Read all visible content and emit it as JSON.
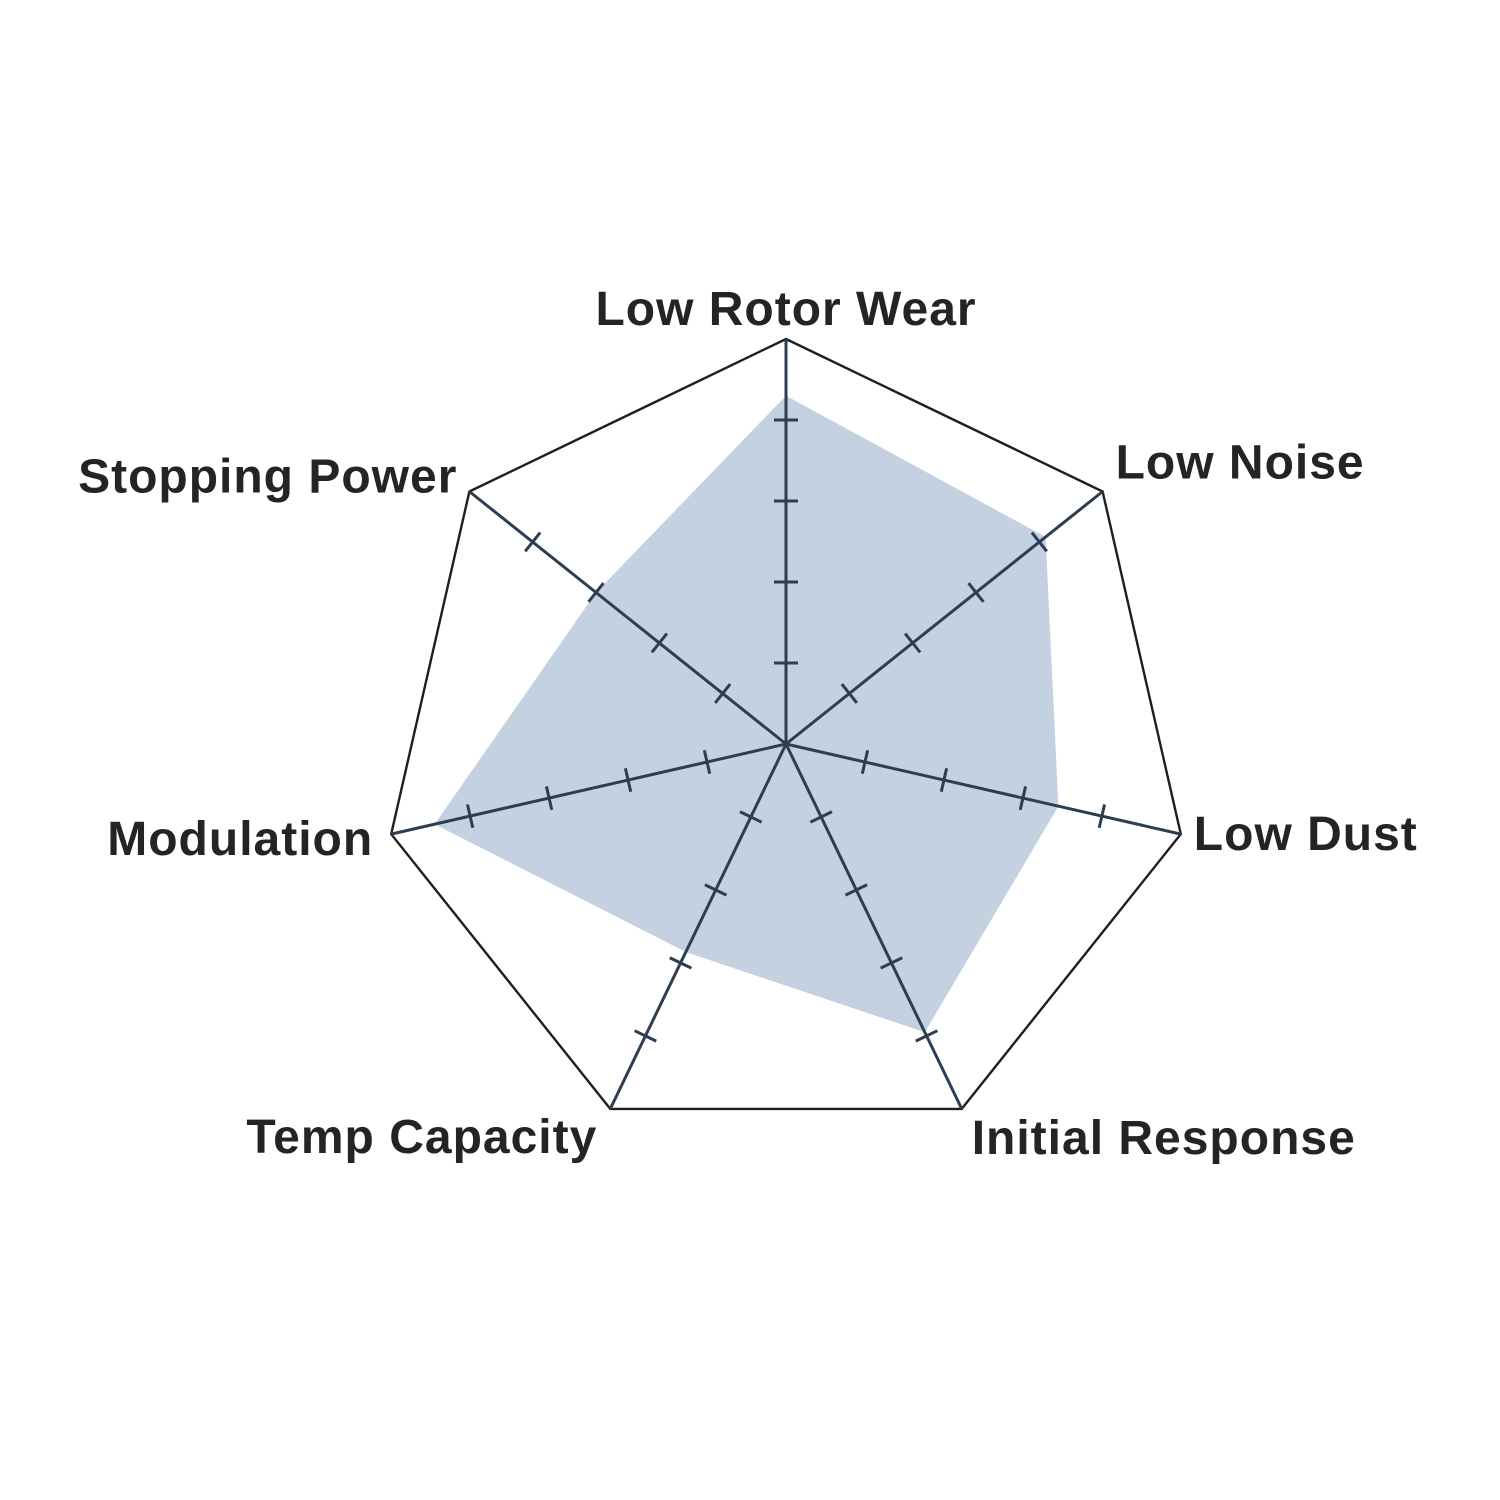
{
  "chart_data": {
    "type": "radar",
    "title": "",
    "axes": [
      "Low Rotor Wear",
      "Low Noise",
      "Low Dust",
      "Initial Response",
      "Temp Capacity",
      "Modulation",
      "Stopping Power"
    ],
    "values": [
      4.3,
      4.1,
      3.45,
      3.95,
      2.85,
      4.45,
      3.0
    ],
    "scale": {
      "min": 0,
      "max": 5,
      "ticks": [
        1,
        2,
        3,
        4
      ]
    },
    "legend_position": "none",
    "grid": "seven spokes with perpendicular tick marks and a single outer heptagon ring",
    "colors": {
      "fill": "#c4d1e0",
      "spoke": "#2d3e52",
      "outline": "#1f1f1f",
      "label": "#262323",
      "background": "#ffffff"
    }
  }
}
